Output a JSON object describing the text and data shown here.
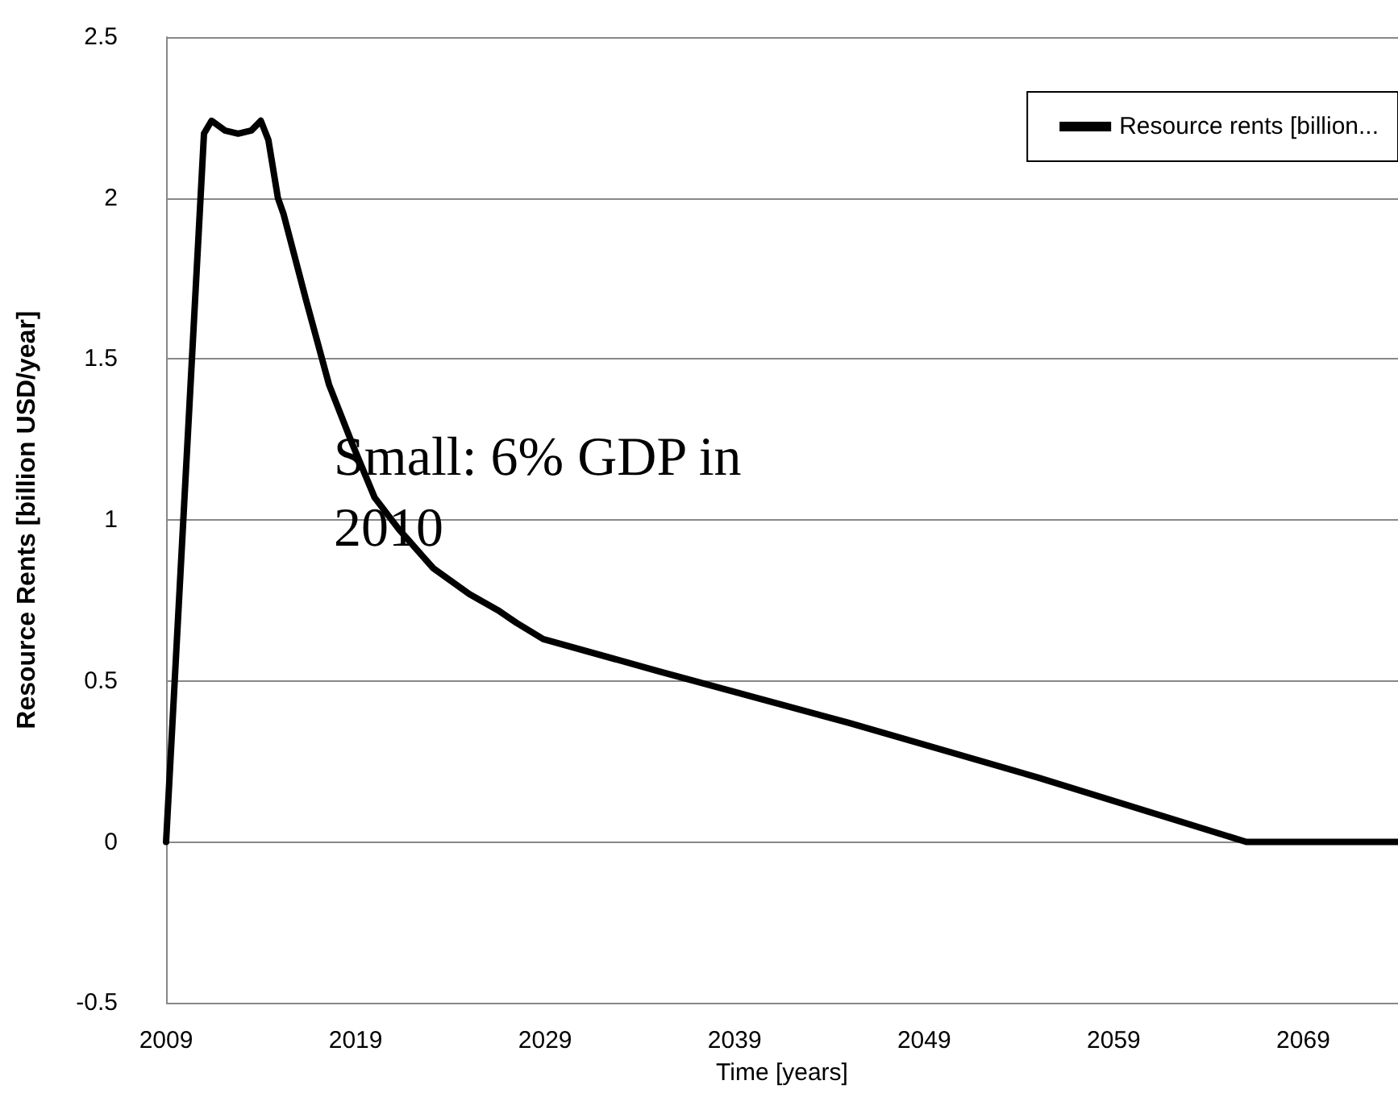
{
  "chart_data": {
    "type": "line",
    "xlabel": "Time [years]",
    "ylabel": "Resource Rents [billion USD/year]",
    "annotations": [
      "Small: 6% GDP in 2010"
    ],
    "series": [
      {
        "name": "Resource rents [billion...",
        "color": "#000000",
        "x": [
          2009,
          2011.0,
          2011.4,
          2012.1,
          2012.8,
          2013.5,
          2014.0,
          2014.4,
          2014.9,
          2015.2,
          2016.4,
          2017.6,
          2018.8,
          2020.0,
          2021.3,
          2022.5,
          2023.1,
          2025.0,
          2026.5,
          2027.5,
          2028.9,
          2035,
          2045,
          2055,
          2066.0,
          2074
        ],
        "values": [
          0,
          2.2,
          2.24,
          2.21,
          2.2,
          2.21,
          2.24,
          2.18,
          2.0,
          1.95,
          1.68,
          1.42,
          1.24,
          1.07,
          0.97,
          0.89,
          0.85,
          0.77,
          0.72,
          0.68,
          0.63,
          0.53,
          0.37,
          0.2,
          0,
          0
        ]
      }
    ],
    "xlim": [
      2009,
      2074
    ],
    "xticks": [
      2009,
      2019,
      2029,
      2039,
      2049,
      2059,
      2069
    ],
    "ylim": [
      -0.5,
      2.5
    ],
    "yticks": [
      -0.5,
      0,
      0.5,
      1,
      1.5,
      2,
      2.5
    ],
    "grid": "y",
    "legend": "top right",
    "marker": "none",
    "line_style": "solid"
  }
}
